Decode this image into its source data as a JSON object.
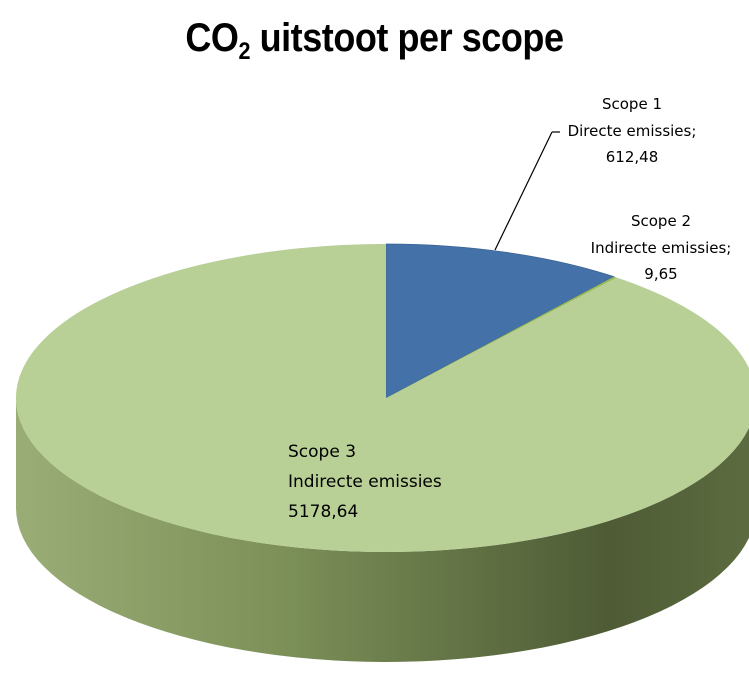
{
  "title": {
    "main": "CO",
    "sub": "2",
    "rest": " uitstoot per scope"
  },
  "chart_data": {
    "type": "pie",
    "style": "3d",
    "title": "CO2 uitstoot per scope",
    "slices": [
      {
        "label": "Scope 1",
        "sublabel": "Directe emissies;",
        "value_text": "612,48",
        "value": 612.48,
        "color": "#4472a8"
      },
      {
        "label": "Scope 2",
        "sublabel": "Indirecte emissies;",
        "value_text": "9,65",
        "value": 9.65,
        "color": "#9bbb59"
      },
      {
        "label": "Scope 3",
        "sublabel": "Indirecte emissies",
        "value_text": "5178,64",
        "value": 5178.64,
        "color": "#b8cf96"
      }
    ]
  }
}
